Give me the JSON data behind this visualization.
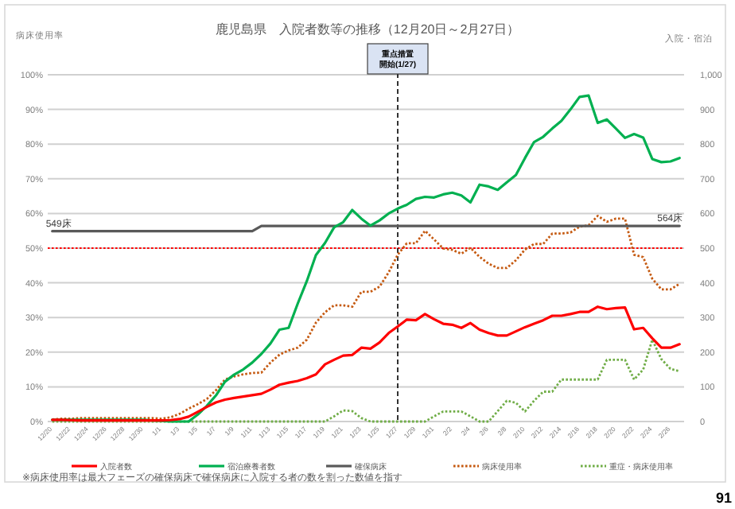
{
  "chart_data": {
    "type": "line",
    "title": "鹿児島県　入院者数等の推移（12月20日～2月27日）",
    "ylabel": "病床使用率",
    "y2label": "入院・宿泊",
    "categories": [
      "12/20",
      null,
      "12/22",
      null,
      "12/24",
      null,
      "12/26",
      null,
      "12/28",
      null,
      "12/30",
      null,
      "1/1",
      null,
      "1/3",
      null,
      "1/5",
      null,
      "1/7",
      null,
      "1/9",
      null,
      "1/11",
      null,
      "1/13",
      null,
      "1/15",
      null,
      "1/17",
      null,
      "1/19",
      null,
      "1/21",
      null,
      "1/23",
      null,
      "1/25",
      null,
      "1/27",
      null,
      "1/29",
      null,
      "1/31",
      null,
      "2/2",
      null,
      "2/4",
      null,
      "2/6",
      null,
      "2/8",
      null,
      "2/10",
      null,
      "2/12",
      null,
      "2/14",
      null,
      "2/16",
      null,
      "2/18",
      null,
      "2/20",
      null,
      "2/22",
      null,
      "2/24",
      null,
      "2/26",
      null
    ],
    "ylim": [
      0,
      100
    ],
    "yticks": [
      {
        "value": 0,
        "label": "0%"
      },
      {
        "value": 10,
        "label": "10%"
      },
      {
        "value": 20,
        "label": "20%"
      },
      {
        "value": 30,
        "label": "30%"
      },
      {
        "value": 40,
        "label": "40%"
      },
      {
        "value": 50,
        "label": "50%"
      },
      {
        "value": 60,
        "label": "60%"
      },
      {
        "value": 70,
        "label": "70%"
      },
      {
        "value": 80,
        "label": "80%"
      },
      {
        "value": 90,
        "label": "90%"
      },
      {
        "value": 100,
        "label": "100%"
      }
    ],
    "y2lim": [
      0,
      1000
    ],
    "y2ticks": [
      0,
      100,
      200,
      300,
      400,
      500,
      600,
      700,
      800,
      900,
      {
        "value": 1000,
        "label": "1,000"
      }
    ],
    "grid": "y",
    "legend": "bottom",
    "ref_lines": [
      {
        "axis": "y",
        "value": 50,
        "color": "#ff0000",
        "line_style": "dotted"
      },
      {
        "axis": "x",
        "value": "1/27",
        "label": "重点措置開始(1/27)",
        "color": "#000000",
        "line_style": "dashed"
      }
    ],
    "series": [
      {
        "name": "入院者数",
        "color": "#ff0000",
        "axis": "y2",
        "line_style": "solid",
        "values": [
          5,
          5,
          4,
          3,
          3,
          3,
          3,
          3,
          3,
          3,
          3,
          3,
          3,
          4,
          7,
          14,
          28,
          42,
          55,
          63,
          68,
          72,
          76,
          80,
          92,
          106,
          112,
          117,
          125,
          136,
          165,
          178,
          190,
          192,
          213,
          210,
          228,
          255,
          274,
          294,
          292,
          310,
          295,
          282,
          279,
          270,
          284,
          265,
          255,
          248,
          248,
          260,
          272,
          282,
          292,
          305,
          305,
          310,
          316,
          316,
          331,
          324,
          327,
          329,
          266,
          270,
          240,
          213,
          213,
          223
        ]
      },
      {
        "name": "宿泊療養者数",
        "color": "#00b050",
        "axis": "y2",
        "line_style": "solid",
        "values": [
          5,
          5,
          5,
          5,
          5,
          5,
          5,
          5,
          5,
          5,
          5,
          3,
          2,
          0,
          0,
          0,
          20,
          45,
          75,
          115,
          135,
          150,
          170,
          195,
          225,
          265,
          270,
          340,
          405,
          480,
          515,
          560,
          575,
          610,
          585,
          565,
          580,
          600,
          614,
          625,
          642,
          648,
          646,
          655,
          660,
          652,
          632,
          683,
          678,
          668,
          690,
          711,
          760,
          806,
          821,
          845,
          867,
          900,
          936,
          940,
          861,
          871,
          845,
          818,
          829,
          819,
          757,
          748,
          750,
          760
        ]
      },
      {
        "name": "確保病床",
        "color": "#595959",
        "axis": "y2",
        "line_style": "solid",
        "values": [
          549,
          549,
          549,
          549,
          549,
          549,
          549,
          549,
          549,
          549,
          549,
          549,
          549,
          549,
          549,
          549,
          549,
          549,
          549,
          549,
          549,
          549,
          549,
          564,
          564,
          564,
          564,
          564,
          564,
          564,
          564,
          564,
          564,
          564,
          564,
          564,
          564,
          564,
          564,
          564,
          564,
          564,
          564,
          564,
          564,
          564,
          564,
          564,
          564,
          564,
          564,
          564,
          564,
          564,
          564,
          564,
          564,
          564,
          564,
          564,
          564,
          564,
          564,
          564,
          564,
          564,
          564,
          564,
          564,
          564
        ],
        "value_labels": [
          "549床",
          null,
          null,
          null,
          null,
          null,
          null,
          null,
          null,
          null,
          null,
          null,
          null,
          null,
          null,
          null,
          null,
          null,
          null,
          null,
          null,
          null,
          null,
          null,
          null,
          null,
          null,
          null,
          null,
          null,
          null,
          null,
          null,
          null,
          null,
          null,
          null,
          null,
          null,
          null,
          null,
          null,
          null,
          null,
          null,
          null,
          null,
          null,
          null,
          null,
          null,
          null,
          null,
          null,
          null,
          null,
          null,
          null,
          null,
          null,
          null,
          null,
          null,
          null,
          null,
          null,
          null,
          null,
          null,
          "564床"
        ]
      },
      {
        "name": "病床使用率",
        "color": "#c55a11",
        "axis": "y",
        "line_style": "dotted",
        "values": [
          0.6,
          0.8,
          0.8,
          1.0,
          1.0,
          1.0,
          1.0,
          1.0,
          1.0,
          1.0,
          1.0,
          1.0,
          0.8,
          1.2,
          2.2,
          3.7,
          5.0,
          6.5,
          9.0,
          12.1,
          13.0,
          13.6,
          14.0,
          14.1,
          17.0,
          19.3,
          20.5,
          21.3,
          23.6,
          28.5,
          31.5,
          33.5,
          33.5,
          33.1,
          37.4,
          37.4,
          38.9,
          43.0,
          48.1,
          51.4,
          51.4,
          55.0,
          52.5,
          49.9,
          49.5,
          48.4,
          50.1,
          47.5,
          45.5,
          44.3,
          44.3,
          46.5,
          49.6,
          51.2,
          51.2,
          54.2,
          54.2,
          54.5,
          56.2,
          56.6,
          59.3,
          57.6,
          58.5,
          58.5,
          48.1,
          47.4,
          41.2,
          38.1,
          38.1,
          39.7
        ]
      },
      {
        "name": "重症・病床使用率",
        "color": "#70ad47",
        "axis": "y",
        "line_style": "dotted",
        "values": [
          0,
          0,
          0,
          0,
          0,
          0,
          0,
          0,
          0,
          0,
          0,
          0,
          0,
          0,
          0,
          0,
          0,
          0,
          0,
          0,
          0,
          0,
          0,
          0,
          0,
          0,
          0,
          0,
          0,
          0,
          0,
          1.5,
          3.2,
          3.0,
          1.0,
          0,
          0,
          0,
          0,
          0,
          0,
          0,
          1.5,
          2.9,
          2.9,
          2.9,
          1.5,
          0,
          0,
          3.0,
          6.0,
          5.4,
          2.9,
          6.0,
          8.6,
          8.6,
          12.1,
          12.1,
          12.1,
          12.1,
          12.1,
          17.8,
          17.8,
          17.8,
          12.1,
          15.0,
          23.6,
          18.0,
          15.2,
          14.5
        ]
      }
    ],
    "annotations": [
      "※病床使用率は最大フェーズの確保病床で確保病床に入院する者の数を割った数値を指す",
      "91"
    ]
  }
}
